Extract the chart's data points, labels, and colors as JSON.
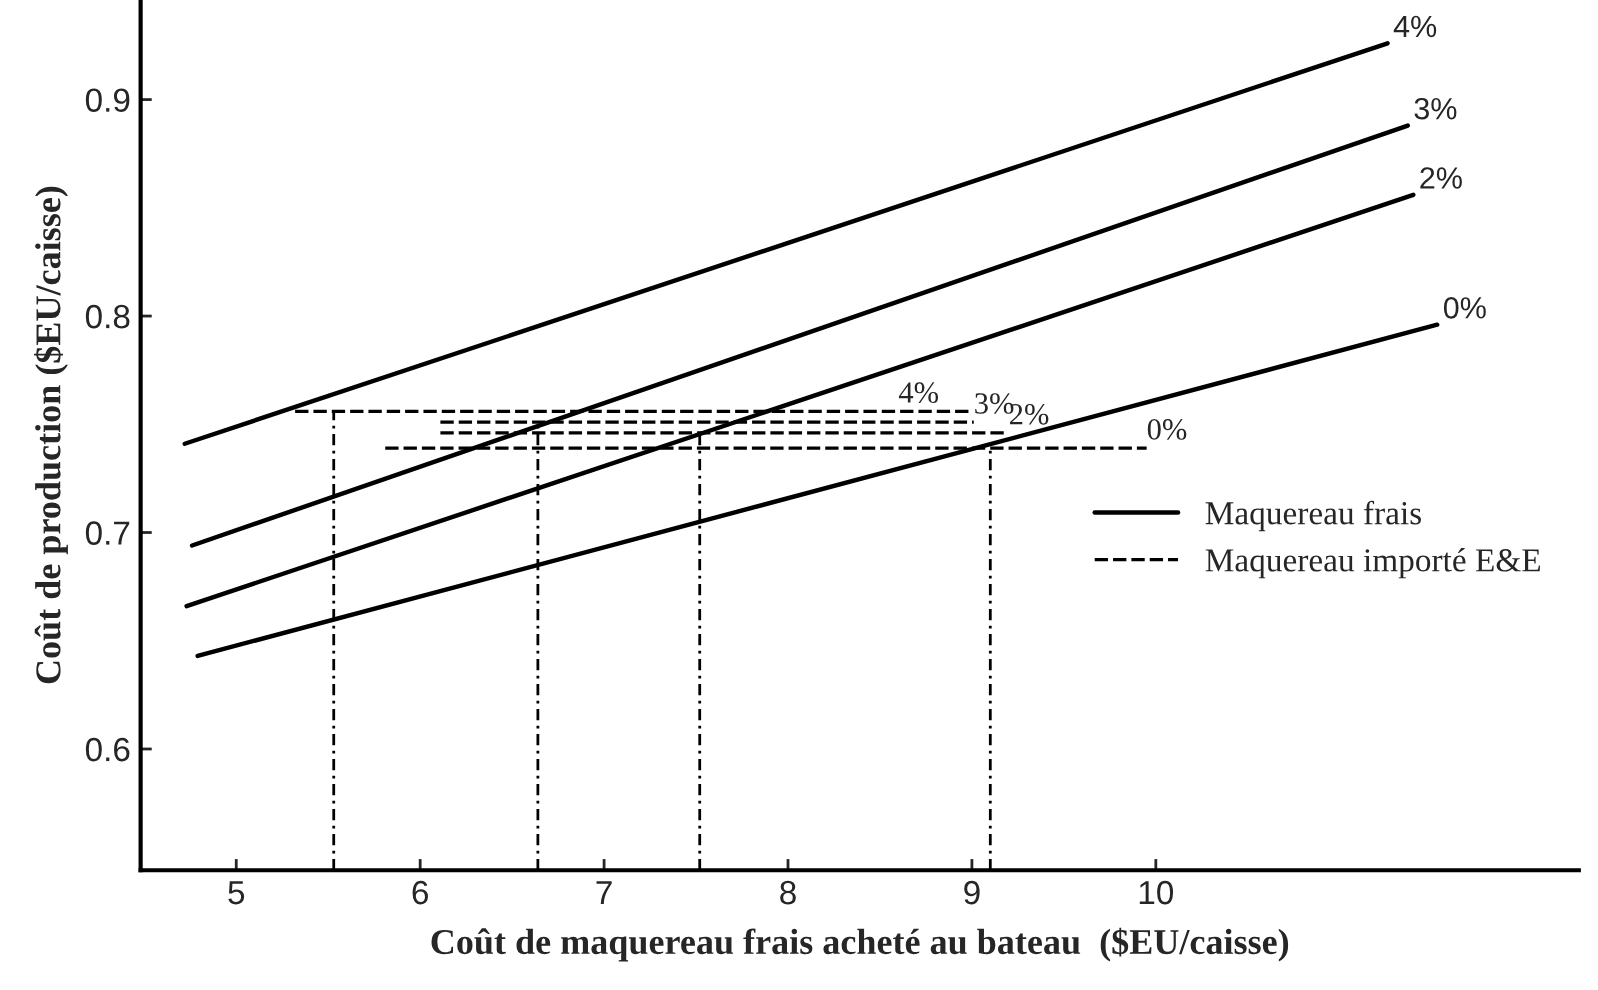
{
  "chart_data": {
    "type": "line",
    "xlabel": "Coût de maquereau frais acheté au bateau  ($EU/caisse)",
    "ylabel": "Coût de production ($EU/caisse)",
    "xlim": [
      4.48,
      12.3
    ],
    "xticks": [
      5,
      6,
      7,
      8,
      9,
      10
    ],
    "ylim": [
      0.544,
      0.946
    ],
    "yticks": [
      0.6,
      0.7,
      0.8,
      0.9
    ],
    "grid": false,
    "legend": "right",
    "series": [
      {
        "name": "4%",
        "color": "#000000",
        "line_style": "solid",
        "x": [
          4.72,
          11.26
        ],
        "values": [
          0.741,
          0.926
        ]
      },
      {
        "name": "3%",
        "color": "#000000",
        "line_style": "solid",
        "x": [
          4.76,
          11.37
        ],
        "values": [
          0.694,
          0.888
        ]
      },
      {
        "name": "2%",
        "color": "#000000",
        "line_style": "solid",
        "x": [
          4.73,
          11.4
        ],
        "values": [
          0.666,
          0.856
        ]
      },
      {
        "name": "0%",
        "color": "#000000",
        "line_style": "solid",
        "x": [
          4.79,
          11.53
        ],
        "values": [
          0.643,
          0.796
        ]
      },
      {
        "color": "#000000",
        "line_style": "dashed",
        "x": [
          5.32,
          8.99
        ],
        "values": [
          0.756,
          0.756
        ]
      },
      {
        "color": "#000000",
        "line_style": "dashed",
        "x": [
          6.11,
          9.01
        ],
        "values": [
          0.751,
          0.751
        ]
      },
      {
        "color": "#000000",
        "line_style": "dashed",
        "x": [
          6.11,
          9.2
        ],
        "values": [
          0.746,
          0.746
        ]
      },
      {
        "color": "#000000",
        "line_style": "dashed",
        "x": [
          5.81,
          9.95
        ],
        "values": [
          0.739,
          0.739
        ]
      },
      {
        "color": "#000000",
        "line_style": "dotted",
        "x": [
          5.53,
          5.53
        ],
        "values": [
          0.544,
          0.756
        ]
      },
      {
        "color": "#000000",
        "line_style": "dotted",
        "x": [
          6.64,
          6.64
        ],
        "values": [
          0.544,
          0.751
        ]
      },
      {
        "color": "#000000",
        "line_style": "dotted",
        "x": [
          7.52,
          7.52
        ],
        "values": [
          0.544,
          0.746
        ]
      },
      {
        "color": "#000000",
        "line_style": "dotted",
        "x": [
          9.1,
          9.1
        ],
        "values": [
          0.544,
          0.739
        ]
      }
    ],
    "annotations": [
      "Maquereau frais",
      "Maquereau importé E&E",
      {
        "text": "4%",
        "x": 8.6,
        "y": 0.756
      },
      {
        "text": "3%",
        "x": 9.01,
        "y": 0.751
      },
      {
        "text": "2%",
        "x": 9.2,
        "y": 0.746
      },
      {
        "text": "0%",
        "x": 9.95,
        "y": 0.739
      }
    ]
  }
}
